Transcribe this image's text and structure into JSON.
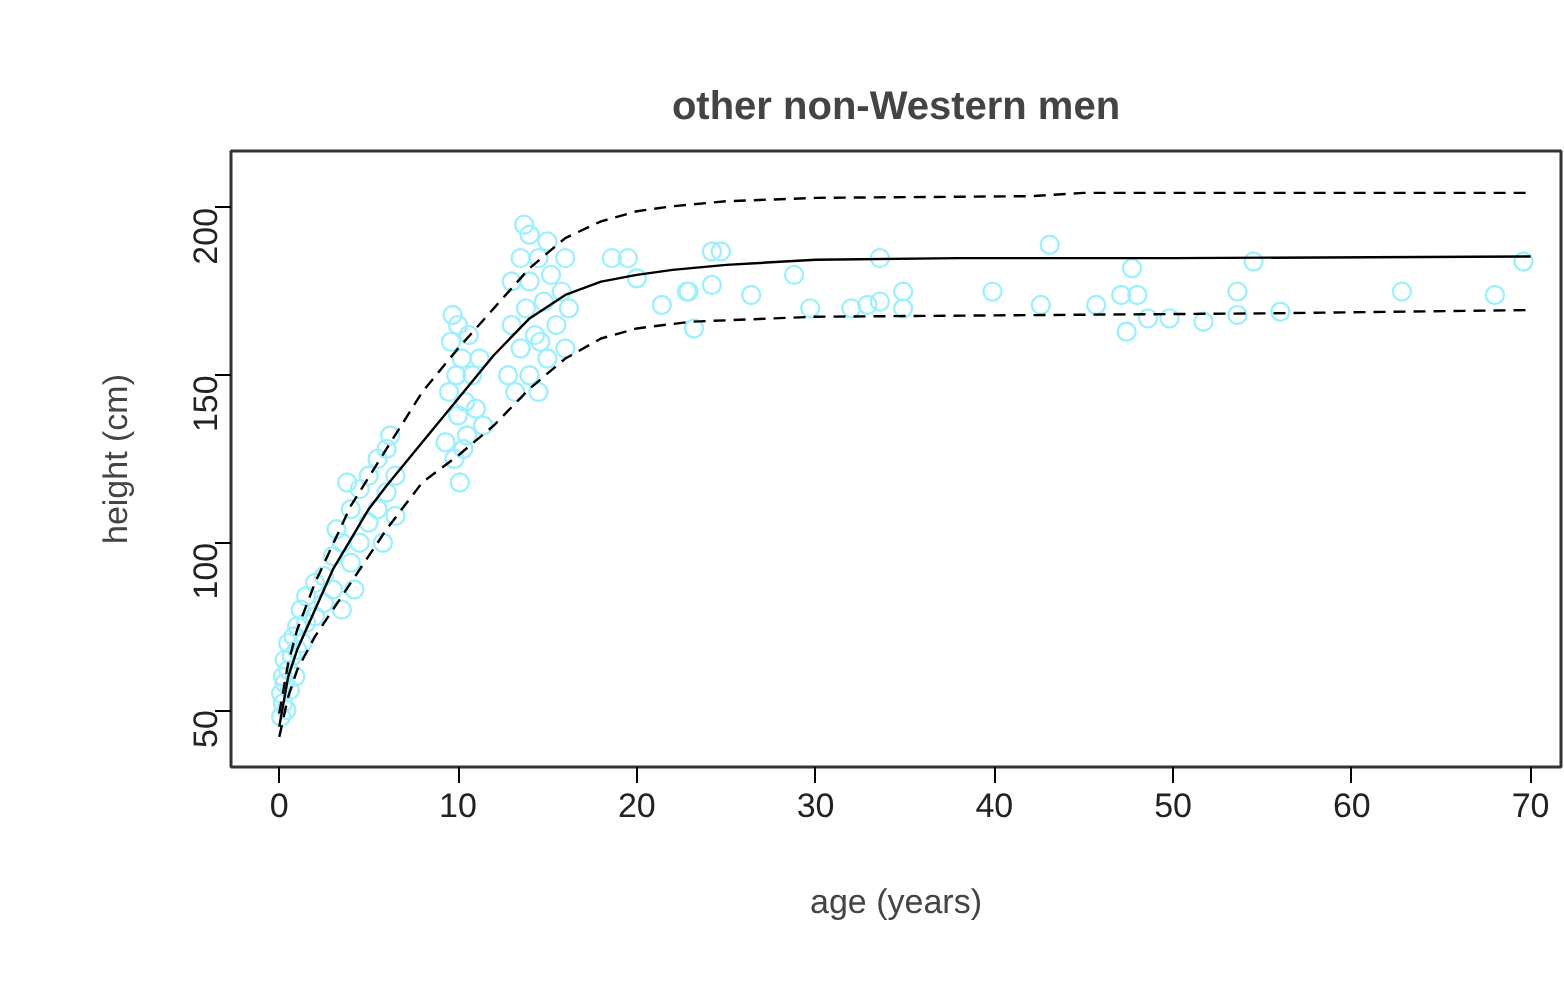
{
  "chart_data": {
    "type": "scatter",
    "title": "other non-Western men",
    "xlabel": "age (years)",
    "ylabel": "height (cm)",
    "xlim": [
      -2.7,
      71.7
    ],
    "ylim": [
      33,
      217
    ],
    "xticks": [
      0,
      10,
      20,
      30,
      40,
      50,
      60,
      70
    ],
    "yticks": [
      50,
      100,
      150,
      200
    ],
    "grid": false,
    "series": [
      {
        "marker": "circle",
        "color": "#9ef0fc",
        "x": [
          0.1,
          0.1,
          0.2,
          0.2,
          0.3,
          0.3,
          0.4,
          0.5,
          0.5,
          0.6,
          0.7,
          0.8,
          0.9,
          1.0,
          1.0,
          1.2,
          1.3,
          1.5,
          1.5,
          2,
          2,
          2.5,
          2.5,
          3,
          3,
          3.2,
          3.5,
          3.5,
          4,
          4,
          4.2,
          4.5,
          4.5,
          5,
          5,
          5.5,
          5.5,
          5.8,
          6,
          6,
          6.2,
          6.5,
          6.5,
          3.8,
          9.3,
          9.5,
          9.6,
          9.8,
          9.9,
          10,
          10,
          10.1,
          10.2,
          10.4,
          10.5,
          10.6,
          10.8,
          11,
          11.2,
          11.4,
          9.7,
          10.3,
          12.8,
          13,
          13,
          13.2,
          13.5,
          13.5,
          13.8,
          14,
          14,
          14,
          14.3,
          14.5,
          14.5,
          14.8,
          15,
          15,
          15.2,
          15.5,
          15.8,
          16,
          16,
          16.2,
          13.7,
          14.6,
          18.6,
          19.5,
          20.0,
          21.4,
          22.8,
          22.9,
          23.2,
          24.2,
          24.7,
          24.2,
          26.4,
          28.8,
          29.7,
          32.0,
          32.9,
          33.6,
          33.6,
          34.9,
          34.9,
          39.9,
          42.6,
          43.1,
          45.7,
          47.1,
          47.4,
          47.7,
          48.0,
          48.6,
          49.8,
          51.7,
          53.6,
          53.6,
          54.5,
          56.0,
          62.8,
          68.0,
          69.6
        ],
        "values": [
          48,
          55,
          52,
          60,
          58,
          65,
          50,
          62,
          70,
          56,
          66,
          72,
          60,
          75,
          68,
          80,
          70,
          84,
          76,
          88,
          78,
          90,
          82,
          96,
          86,
          104,
          80,
          100,
          110,
          94,
          86,
          116,
          100,
          120,
          106,
          125,
          110,
          100,
          128,
          115,
          132,
          120,
          108,
          118,
          130,
          145,
          160,
          125,
          150,
          138,
          165,
          118,
          155,
          142,
          132,
          162,
          150,
          140,
          155,
          135,
          168,
          128,
          150,
          165,
          178,
          145,
          185,
          158,
          170,
          192,
          150,
          178,
          162,
          185,
          145,
          172,
          190,
          155,
          180,
          165,
          175,
          185,
          158,
          170,
          195,
          160,
          185,
          185,
          179,
          171,
          175,
          175,
          164,
          187,
          187,
          177,
          174,
          180,
          170,
          170,
          171,
          172,
          185,
          175,
          170,
          175,
          171,
          189,
          171,
          174,
          163,
          182,
          174,
          167,
          167,
          166,
          175,
          168,
          184,
          169,
          175,
          174,
          184
        ]
      },
      {
        "type": "line",
        "line_style": "solid",
        "color": "#000000",
        "x": [
          0,
          0.5,
          1,
          2,
          3,
          4,
          5,
          6,
          8,
          10,
          12,
          14,
          16,
          18,
          20,
          22,
          25,
          30,
          38,
          50,
          70
        ],
        "values": [
          45,
          60,
          68,
          80,
          92,
          101,
          110,
          117,
          130,
          143,
          156,
          167,
          174,
          178,
          180,
          181.5,
          183,
          184.5,
          185,
          185,
          185.5
        ]
      },
      {
        "type": "line",
        "line_style": "dashed",
        "color": "#000000",
        "x": [
          0,
          0.5,
          1,
          2,
          4,
          6,
          8,
          10,
          12,
          14,
          16,
          18,
          20,
          22,
          25,
          30,
          42,
          45,
          70
        ],
        "values": [
          49,
          64,
          74,
          88,
          111,
          128,
          145,
          158,
          170,
          182,
          191,
          196,
          199,
          200.5,
          202,
          203,
          203.5,
          204.5,
          204.5
        ]
      },
      {
        "type": "line",
        "line_style": "dashed",
        "color": "#000000",
        "x": [
          0,
          0.5,
          1,
          2,
          4,
          6,
          8,
          10,
          12,
          14,
          16,
          18,
          20,
          23,
          30,
          55,
          70
        ],
        "values": [
          42,
          54,
          62,
          72,
          88,
          104,
          118,
          126,
          135,
          146,
          155,
          161,
          164,
          166,
          167.5,
          168.5,
          169.5
        ]
      }
    ]
  }
}
